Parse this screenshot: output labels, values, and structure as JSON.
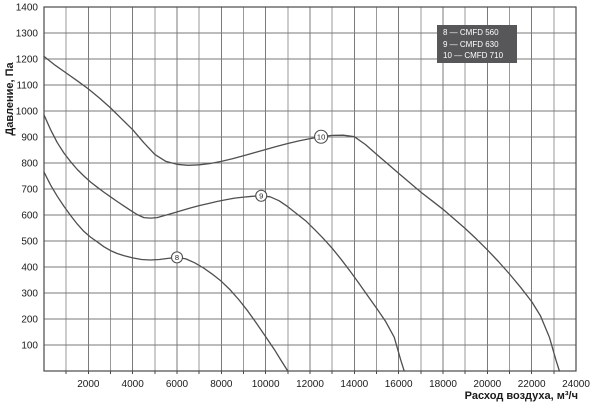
{
  "colors": {
    "background": "#ffffff",
    "plot_border": "#4a4a4a",
    "grid_major": "#7a7a7a",
    "grid_minor": "#9a9a9a",
    "curve": "#4f4f4f",
    "legend_background": "#57575a",
    "legend_text": "#ffffff",
    "tick_text": "#1a1a1a"
  },
  "chart_data": {
    "type": "line",
    "xlabel": "Расход воздуха, м³/ч",
    "ylabel": "Давление, Па",
    "xlim": [
      0,
      24000
    ],
    "ylim": [
      0,
      1400
    ],
    "x_major_step": 2000,
    "x_minor_step": 1000,
    "y_step": 100,
    "grid": "on",
    "legend_position": "top-right-inside",
    "x_tick_labels": [
      "2000",
      "4000",
      "6000",
      "8000",
      "10000",
      "12000",
      "14000",
      "16000",
      "18000",
      "20000",
      "22000",
      "24000"
    ],
    "y_tick_labels": [
      "100",
      "200",
      "300",
      "400",
      "500",
      "600",
      "700",
      "800",
      "900",
      "1000",
      "1100",
      "1200",
      "1300",
      "1400"
    ],
    "series": [
      {
        "name": "CMFD 560",
        "marker_number": "8",
        "legend_label": "8 — CMFD 560",
        "marker_at": [
          6000,
          437
        ],
        "points": [
          [
            0,
            765
          ],
          [
            300,
            715
          ],
          [
            600,
            672
          ],
          [
            900,
            633
          ],
          [
            1200,
            598
          ],
          [
            1500,
            565
          ],
          [
            1800,
            537
          ],
          [
            2100,
            515
          ],
          [
            2400,
            497
          ],
          [
            2700,
            478
          ],
          [
            3000,
            463
          ],
          [
            3300,
            452
          ],
          [
            3600,
            444
          ],
          [
            4000,
            435
          ],
          [
            4400,
            429
          ],
          [
            4800,
            427
          ],
          [
            5200,
            429
          ],
          [
            5600,
            433
          ],
          [
            6000,
            437
          ],
          [
            6400,
            431
          ],
          [
            6800,
            416
          ],
          [
            7200,
            396
          ],
          [
            7600,
            372
          ],
          [
            8000,
            345
          ],
          [
            8400,
            312
          ],
          [
            8800,
            273
          ],
          [
            9200,
            230
          ],
          [
            9600,
            182
          ],
          [
            10000,
            132
          ],
          [
            10400,
            82
          ],
          [
            10700,
            40
          ],
          [
            11000,
            0
          ]
        ]
      },
      {
        "name": "CMFD 630",
        "marker_number": "9",
        "legend_label": "9 — CMFD 630",
        "marker_at": [
          9800,
          674
        ],
        "points": [
          [
            0,
            985
          ],
          [
            300,
            928
          ],
          [
            600,
            878
          ],
          [
            900,
            838
          ],
          [
            1200,
            805
          ],
          [
            1500,
            775
          ],
          [
            1800,
            750
          ],
          [
            2100,
            727
          ],
          [
            2400,
            707
          ],
          [
            2700,
            688
          ],
          [
            3000,
            670
          ],
          [
            3300,
            652
          ],
          [
            3600,
            635
          ],
          [
            3900,
            618
          ],
          [
            4200,
            602
          ],
          [
            4500,
            590
          ],
          [
            4800,
            588
          ],
          [
            5100,
            590
          ],
          [
            5400,
            597
          ],
          [
            5800,
            607
          ],
          [
            6200,
            617
          ],
          [
            6600,
            627
          ],
          [
            7000,
            636
          ],
          [
            7400,
            644
          ],
          [
            7800,
            652
          ],
          [
            8200,
            659
          ],
          [
            8600,
            665
          ],
          [
            9000,
            669
          ],
          [
            9400,
            672
          ],
          [
            9800,
            674
          ],
          [
            10200,
            670
          ],
          [
            10600,
            655
          ],
          [
            11000,
            632
          ],
          [
            11400,
            605
          ],
          [
            11800,
            578
          ],
          [
            12200,
            545
          ],
          [
            12600,
            510
          ],
          [
            13000,
            472
          ],
          [
            13400,
            430
          ],
          [
            13800,
            385
          ],
          [
            14200,
            338
          ],
          [
            14600,
            290
          ],
          [
            15000,
            242
          ],
          [
            15400,
            192
          ],
          [
            15800,
            130
          ],
          [
            16100,
            40
          ],
          [
            16250,
            0
          ]
        ]
      },
      {
        "name": "CMFD 710",
        "marker_number": "10",
        "legend_label": "10 — CMFD 710",
        "marker_at": [
          12500,
          901
        ],
        "points": [
          [
            0,
            1210
          ],
          [
            500,
            1176
          ],
          [
            1000,
            1146
          ],
          [
            1500,
            1116
          ],
          [
            2000,
            1085
          ],
          [
            2500,
            1050
          ],
          [
            3000,
            1012
          ],
          [
            3500,
            970
          ],
          [
            4000,
            928
          ],
          [
            4500,
            878
          ],
          [
            5000,
            833
          ],
          [
            5500,
            806
          ],
          [
            6000,
            795
          ],
          [
            6500,
            791
          ],
          [
            7000,
            793
          ],
          [
            7500,
            798
          ],
          [
            8000,
            806
          ],
          [
            8500,
            816
          ],
          [
            9000,
            828
          ],
          [
            9500,
            840
          ],
          [
            10000,
            852
          ],
          [
            10500,
            864
          ],
          [
            11000,
            875
          ],
          [
            11500,
            885
          ],
          [
            12000,
            894
          ],
          [
            12500,
            901
          ],
          [
            13000,
            906
          ],
          [
            13500,
            907
          ],
          [
            14000,
            901
          ],
          [
            14500,
            871
          ],
          [
            15000,
            834
          ],
          [
            15500,
            797
          ],
          [
            16000,
            760
          ],
          [
            16500,
            724
          ],
          [
            17000,
            688
          ],
          [
            17500,
            655
          ],
          [
            18000,
            622
          ],
          [
            18500,
            585
          ],
          [
            19000,
            548
          ],
          [
            19500,
            508
          ],
          [
            20000,
            466
          ],
          [
            20500,
            421
          ],
          [
            21000,
            373
          ],
          [
            21500,
            322
          ],
          [
            22000,
            267
          ],
          [
            22400,
            212
          ],
          [
            22800,
            130
          ],
          [
            23100,
            40
          ],
          [
            23250,
            0
          ]
        ]
      }
    ]
  }
}
